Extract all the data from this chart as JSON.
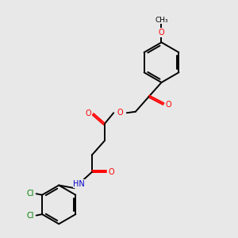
{
  "background_color": "#e8e8e8",
  "bond_color": "#000000",
  "atom_colors": {
    "O": "#ff0000",
    "N": "#0000cc",
    "Cl": "#008000",
    "C": "#000000",
    "H": "#000000"
  },
  "figsize": [
    3.0,
    3.0
  ],
  "dpi": 100,
  "lw": 1.4,
  "fs": 7.0
}
